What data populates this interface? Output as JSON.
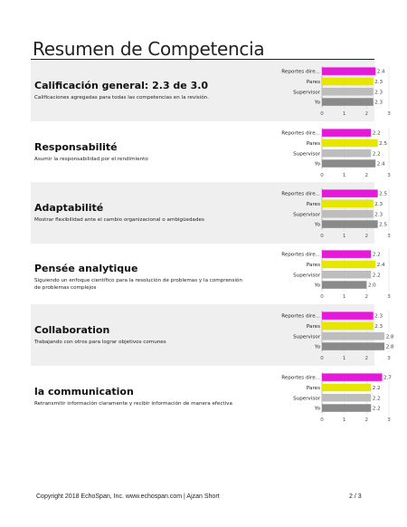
{
  "page_title": "Resumen de Competencia",
  "footer": {
    "copyright": "Copyright 2018 EchoSpan, Inc. www.echospan.com  |  Ajzan Short",
    "page_number": "2 / 3"
  },
  "colors": {
    "reportes": "#e51ad9",
    "pares": "#e6e600",
    "supervisor": "#bdbdbd",
    "yo": "#8a8a8a",
    "shaded_bg": "#efefef"
  },
  "sections": [
    {
      "title": "Calificación general: 2.3 de 3.0",
      "description": "Calificaciones agregadas para todas las competencias en la revisión.",
      "shaded": true
    },
    {
      "title": "Responsabilité",
      "description": "Asumir la responsabilidad por el rendimiento",
      "shaded": false
    },
    {
      "title": "Adaptabilité",
      "description": "Mostrar flexibilidad ante el cambio organizacional o ambigüedades",
      "shaded": true
    },
    {
      "title": "Pensée analytique",
      "description": "Siguiendo un enfoque científico para la resolución de problemas y la comprensión de problemas complejos",
      "shaded": false
    },
    {
      "title": "Collaboration",
      "description": "Trabajando con otros para lograr objetivos comunes",
      "shaded": true
    },
    {
      "title": "la communication",
      "description": "Retransmitir información claramente y recibir información de manera efectiva",
      "shaded": false
    }
  ],
  "chart_data": [
    {
      "type": "bar",
      "orientation": "horizontal",
      "categories": [
        "Reportes dire...",
        "Pares",
        "Supervisor",
        "Yo"
      ],
      "values": [
        2.4,
        2.3,
        2.3,
        2.3
      ],
      "xlim": [
        0,
        3
      ],
      "xticks": [
        "0",
        "1",
        "2",
        "3"
      ],
      "value_labels": [
        "2.4",
        "2.3",
        "2.3",
        "2.3"
      ]
    },
    {
      "type": "bar",
      "orientation": "horizontal",
      "categories": [
        "Reportes dire...",
        "Pares",
        "Supervisor",
        "Yo"
      ],
      "values": [
        2.2,
        2.5,
        2.2,
        2.4
      ],
      "xlim": [
        0,
        3
      ],
      "xticks": [
        "0",
        "1",
        "2",
        "3"
      ],
      "value_labels": [
        "2.2",
        "2.5",
        "2.2",
        "2.4"
      ]
    },
    {
      "type": "bar",
      "orientation": "horizontal",
      "categories": [
        "Reportes dire...",
        "Pares",
        "Supervisor",
        "Yo"
      ],
      "values": [
        2.5,
        2.3,
        2.3,
        2.5
      ],
      "xlim": [
        0,
        3
      ],
      "xticks": [
        "0",
        "1",
        "2",
        "3"
      ],
      "value_labels": [
        "2.5",
        "2.3",
        "2.3",
        "2.5"
      ]
    },
    {
      "type": "bar",
      "orientation": "horizontal",
      "categories": [
        "Reportes dire...",
        "Pares",
        "Supervisor",
        "Yo"
      ],
      "values": [
        2.2,
        2.4,
        2.2,
        2.0
      ],
      "xlim": [
        0,
        3
      ],
      "xticks": [
        "0",
        "1",
        "2",
        "3"
      ],
      "value_labels": [
        "2.2",
        "2.4",
        "2.2",
        "2.0"
      ]
    },
    {
      "type": "bar",
      "orientation": "horizontal",
      "categories": [
        "Reportes dire...",
        "Pares",
        "Supervisor",
        "Yo"
      ],
      "values": [
        2.3,
        2.3,
        2.8,
        2.8
      ],
      "xlim": [
        0,
        3
      ],
      "xticks": [
        "0",
        "1",
        "2",
        "3"
      ],
      "value_labels": [
        "2.3",
        "2.3",
        "2.8",
        "2.8"
      ]
    },
    {
      "type": "bar",
      "orientation": "horizontal",
      "categories": [
        "Reportes dire...",
        "Pares",
        "Supervisor",
        "Yo"
      ],
      "values": [
        2.7,
        2.2,
        2.2,
        2.2
      ],
      "xlim": [
        0,
        3
      ],
      "xticks": [
        "0",
        "1",
        "2",
        "3"
      ],
      "value_labels": [
        "2.7",
        "2.2",
        "2.2",
        "2.2"
      ]
    }
  ]
}
